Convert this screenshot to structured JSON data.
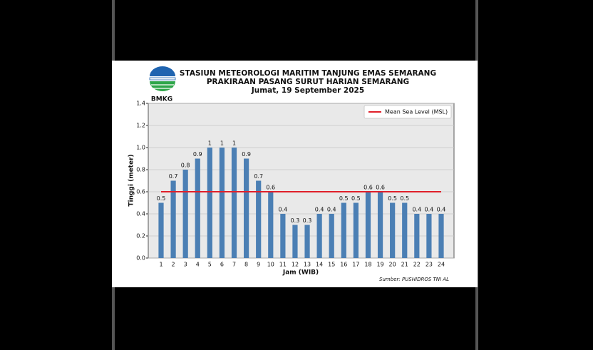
{
  "chart_data": {
    "type": "bar",
    "title": "STASIUN METEOROLOGI MARITIM TANJUNG EMAS SEMARANG",
    "subtitle": "PRAKIRAAN PASANG SURUT HARIAN SEMARANG",
    "date": "Jumat, 19 September 2025",
    "logo_text": "BMKG",
    "x_label": "Jam (WIB)",
    "y_label": "Tinggi (meter)",
    "source": "Sumber: PUSHIDROS TNI AL",
    "categories": [
      "1",
      "2",
      "3",
      "4",
      "5",
      "6",
      "7",
      "8",
      "9",
      "10",
      "11",
      "12",
      "13",
      "14",
      "15",
      "16",
      "17",
      "18",
      "19",
      "20",
      "21",
      "22",
      "23",
      "24"
    ],
    "values": [
      0.5,
      0.7,
      0.8,
      0.9,
      1,
      1,
      1,
      0.9,
      0.7,
      0.6,
      0.4,
      0.3,
      0.3,
      0.4,
      0.4,
      0.5,
      0.5,
      0.6,
      0.6,
      0.5,
      0.5,
      0.4,
      0.4,
      0.4
    ],
    "color": "#4b7fb4",
    "msl": {
      "name": "Mean Sea Level (MSL)",
      "value": 0.6,
      "color": "#e0202a"
    },
    "legend": "upper right",
    "ylim": [
      0,
      1.4
    ],
    "yticks": [
      {
        "value": 0,
        "label": "0.0"
      },
      0.2,
      0.4,
      0.6,
      0.8,
      {
        "value": 1,
        "label": "1.0"
      },
      1.2,
      1.4
    ],
    "grid": true
  }
}
